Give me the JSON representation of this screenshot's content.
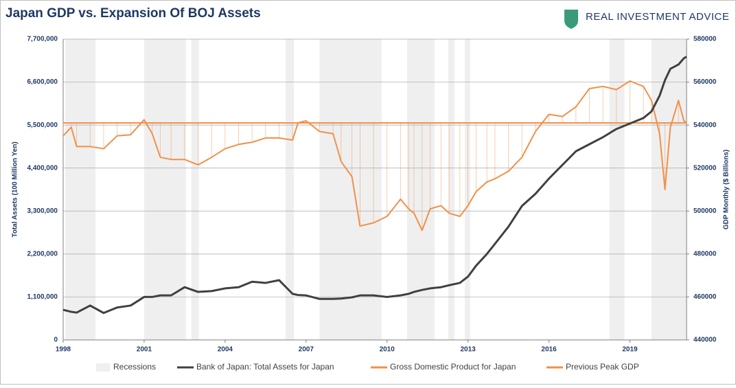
{
  "chart_data": {
    "type": "line",
    "title": "Japan GDP vs. Expansion Of BOJ Assets",
    "logo_text": "REAL INVESTMENT ADVICE",
    "y_label": "Total Assets (100 Million Yen)",
    "y2_label": "GDP Monthly ($ Billions)",
    "recessions_name": "Recessions",
    "recessions_color": "#efefef",
    "recessions": [
      [
        1998.08,
        1999.2
      ],
      [
        2001.0,
        2002.55
      ],
      [
        2002.75,
        2003.03
      ],
      [
        2006.24,
        2006.55
      ],
      [
        2007.5,
        2009.8
      ],
      [
        2010.74,
        2011.76
      ],
      [
        2012.27,
        2012.5
      ],
      [
        2012.88,
        2013.08
      ],
      [
        2018.24,
        2018.8
      ],
      [
        2019.8,
        2021.1
      ]
    ],
    "x": [
      1998.0,
      1998.3,
      1998.5,
      1999.0,
      1999.5,
      2000.0,
      2000.5,
      2001.0,
      2001.3,
      2001.6,
      2002.0,
      2002.5,
      2003.0,
      2003.5,
      2004.0,
      2004.5,
      2005.0,
      2005.5,
      2006.0,
      2006.5,
      2006.7,
      2007.0,
      2007.5,
      2008.0,
      2008.3,
      2008.7,
      2009.0,
      2009.5,
      2010.0,
      2010.5,
      2010.8,
      2011.0,
      2011.3,
      2011.6,
      2012.0,
      2012.3,
      2012.7,
      2013.0,
      2013.3,
      2013.7,
      2014.0,
      2014.5,
      2015.0,
      2015.5,
      2016.0,
      2016.5,
      2017.0,
      2017.5,
      2018.0,
      2018.5,
      2019.0,
      2019.5,
      2019.8,
      2020.1,
      2020.3,
      2020.5,
      2020.8,
      2021.0,
      2021.1
    ],
    "series": [
      {
        "name": "Bank of Japan: Total Assets for Japan",
        "color": "#404040",
        "axis": "y",
        "values": [
          770000,
          720000,
          700000,
          880000,
          690000,
          830000,
          880000,
          1100000,
          1100000,
          1140000,
          1140000,
          1350000,
          1230000,
          1250000,
          1320000,
          1350000,
          1490000,
          1460000,
          1530000,
          1180000,
          1150000,
          1140000,
          1050000,
          1050000,
          1060000,
          1090000,
          1140000,
          1140000,
          1100000,
          1140000,
          1180000,
          1230000,
          1280000,
          1320000,
          1350000,
          1400000,
          1460000,
          1620000,
          1900000,
          2200000,
          2460000,
          2900000,
          3430000,
          3740000,
          4130000,
          4480000,
          4830000,
          5010000,
          5190000,
          5400000,
          5540000,
          5680000,
          5850000,
          6250000,
          6650000,
          6940000,
          7050000,
          7210000,
          7250000
        ]
      },
      {
        "name": "Gross Domestic Product for Japan",
        "color": "#f0904a",
        "axis": "y2",
        "values": [
          535000,
          539000,
          530000,
          530000,
          529000,
          535000,
          535500,
          542500,
          536000,
          525000,
          524000,
          524000,
          521500,
          525000,
          529000,
          531000,
          532000,
          534000,
          534000,
          533000,
          541000,
          542000,
          537000,
          536000,
          523000,
          516000,
          493000,
          494500,
          497500,
          505500,
          501000,
          499000,
          491000,
          501000,
          502500,
          499000,
          497500,
          502500,
          509000,
          513500,
          515000,
          518500,
          525000,
          537000,
          545000,
          544000,
          548500,
          557000,
          558000,
          556500,
          560500,
          558000,
          551500,
          536000,
          510000,
          539000,
          551500,
          542000,
          541000
        ]
      },
      {
        "name": "Previous Peak GDP",
        "color": "#f0904a",
        "axis": "y2",
        "values": [
          541000,
          541000,
          541000,
          541000,
          541000,
          541000,
          541000,
          541000,
          541000,
          541000,
          541000,
          541000,
          541000,
          541000,
          541000,
          541000,
          541000,
          541000,
          541000,
          541000,
          541000,
          541000,
          541000,
          541000,
          541000,
          541000,
          541000,
          541000,
          541000,
          541000,
          541000,
          541000,
          541000,
          541000,
          541000,
          541000,
          541000,
          541000,
          541000,
          541000,
          541000,
          541000,
          541000,
          541000,
          541000,
          541000,
          541000,
          541000,
          541000,
          541000,
          541000,
          541000,
          541000,
          541000,
          541000,
          541000,
          541000,
          541000,
          541000
        ]
      }
    ],
    "xlim": [
      1998,
      2021.1
    ],
    "xticks": [
      1998,
      2001,
      2004,
      2007,
      2010,
      2013,
      2016,
      2019
    ],
    "ylim": [
      0,
      7700000
    ],
    "yticks": [
      0,
      {
        "value": 1100000,
        "label": "1,100,000"
      },
      {
        "value": 2200000,
        "label": "2,200,000"
      },
      {
        "value": 3300000,
        "label": "3,300,000"
      },
      {
        "value": 4400000,
        "label": "4,400,000"
      },
      {
        "value": 5500000,
        "label": "5,500,000"
      },
      {
        "value": 6600000,
        "label": "6,600,000"
      },
      {
        "value": 7700000,
        "label": "7,700,000"
      }
    ],
    "y2lim": [
      440000,
      580000
    ],
    "y2ticks": [
      440000,
      460000,
      480000,
      500000,
      520000,
      540000,
      560000,
      580000
    ],
    "grid": true,
    "legend": "bottom"
  }
}
